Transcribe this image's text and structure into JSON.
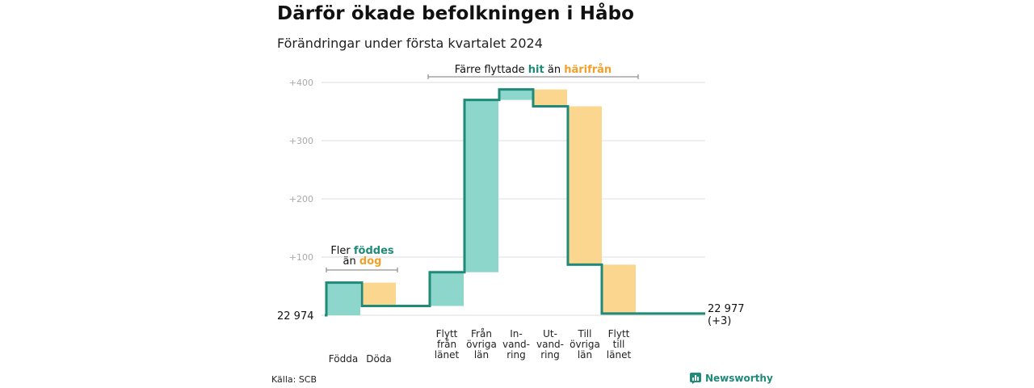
{
  "title": "Därför ökade befolkningen i Håbo",
  "subtitle": "Förändringar under första kvartalet 2024",
  "source": "Källa: SCB",
  "brand": {
    "name": "Newsworthy",
    "icon": "bar-chart-logo-icon"
  },
  "colors": {
    "increase": "#8dd6cc",
    "decrease": "#fbd68f",
    "line": "#1f8a78",
    "grid": "#dddddd",
    "tick": "#aaaaaa",
    "highlight_teal": "#1f8a78",
    "highlight_orange": "#f0a12b"
  },
  "chart_data": {
    "type": "waterfall",
    "start": {
      "label": "22  974",
      "value": 0
    },
    "end": {
      "label": "22 977",
      "change_label": "(+3)",
      "value": 3
    },
    "steps": [
      {
        "label_lines": [
          "Födda"
        ],
        "delta": 56,
        "kind": "increase"
      },
      {
        "label_lines": [
          "Döda"
        ],
        "delta": -40,
        "kind": "decrease"
      },
      {
        "label_lines": [
          "Flytt",
          "från",
          "länet"
        ],
        "delta": 58,
        "kind": "increase"
      },
      {
        "label_lines": [
          "Från",
          "övriga",
          "län"
        ],
        "delta": 296,
        "kind": "increase"
      },
      {
        "label_lines": [
          "In-",
          "vand-",
          "ring"
        ],
        "delta": 18,
        "kind": "increase"
      },
      {
        "label_lines": [
          "Ut-",
          "vand-",
          "ring"
        ],
        "delta": -29,
        "kind": "decrease"
      },
      {
        "label_lines": [
          "Till",
          "övriga",
          "län"
        ],
        "delta": -272,
        "kind": "decrease"
      },
      {
        "label_lines": [
          "Flytt",
          "till",
          "länet"
        ],
        "delta": -84,
        "kind": "decrease"
      }
    ],
    "y_axis": {
      "ticks": [
        {
          "value": 100,
          "label": "+100"
        },
        {
          "value": 200,
          "label": "+200"
        },
        {
          "value": 300,
          "label": "+300"
        },
        {
          "value": 400,
          "label": "+400"
        }
      ],
      "range": [
        0,
        400
      ],
      "grid": true
    },
    "annotations": [
      {
        "from_step": 0,
        "to_step": 1,
        "parts": [
          {
            "text": "Fler ",
            "style": "plain"
          },
          {
            "text": "föddes",
            "style": "teal"
          }
        ],
        "parts2": [
          {
            "text": "än ",
            "style": "plain"
          },
          {
            "text": "dog",
            "style": "orange"
          }
        ]
      },
      {
        "from_step": 2,
        "to_step": 7,
        "parts": [
          {
            "text": "Färre flyttade ",
            "style": "plain"
          },
          {
            "text": "hit",
            "style": "teal"
          },
          {
            "text": " än ",
            "style": "plain"
          },
          {
            "text": "härifrån",
            "style": "orange"
          }
        ]
      }
    ]
  }
}
